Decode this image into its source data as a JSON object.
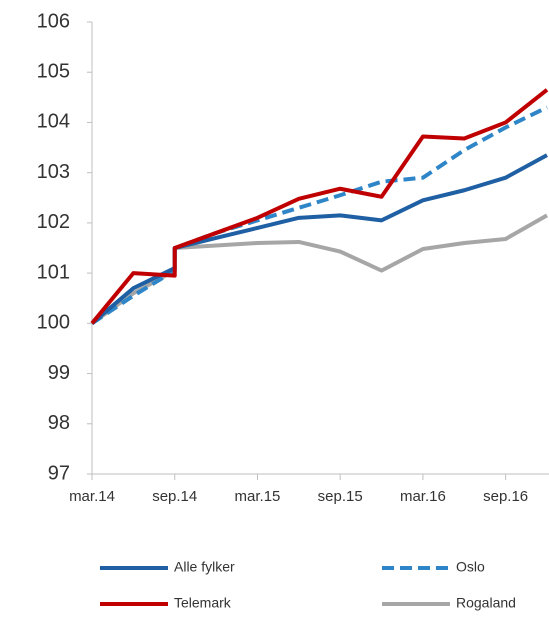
{
  "chart_data": {
    "type": "line",
    "x": [
      0,
      3,
      6,
      6,
      9,
      12,
      15,
      18,
      21,
      24,
      27,
      30,
      33
    ],
    "xlim": [
      0,
      33
    ],
    "xticks": [
      {
        "value": 0,
        "label": "mar.14"
      },
      {
        "value": 6,
        "label": "sep.14"
      },
      {
        "value": 12,
        "label": "mar.15"
      },
      {
        "value": 18,
        "label": "sep.15"
      },
      {
        "value": 24,
        "label": "mar.16"
      },
      {
        "value": 30,
        "label": "sep.16"
      }
    ],
    "ylim": [
      97,
      106
    ],
    "yticks": [
      97,
      98,
      99,
      100,
      101,
      102,
      103,
      104,
      105,
      106
    ],
    "legend": "bottom",
    "series": [
      {
        "name": "Alle fylker",
        "color": "#1f5fa3",
        "dash": false,
        "values": [
          100,
          100.7,
          101.1,
          101.5,
          101.7,
          101.9,
          102.1,
          102.15,
          102.05,
          102.45,
          102.65,
          102.9,
          103.35
        ]
      },
      {
        "name": "Oslo",
        "color": "#2e86c8",
        "dash": true,
        "values": [
          100,
          100.55,
          101.05,
          101.5,
          101.8,
          102.05,
          102.3,
          102.55,
          102.82,
          102.9,
          103.45,
          103.9,
          104.3
        ]
      },
      {
        "name": "Telemark",
        "color": "#c00000",
        "dash": false,
        "values": [
          100,
          101.0,
          100.95,
          101.5,
          101.8,
          102.1,
          102.48,
          102.68,
          102.52,
          103.72,
          103.68,
          104.0,
          104.65
        ]
      },
      {
        "name": "Rogaland",
        "color": "#a6a6a6",
        "dash": false,
        "values": [
          100,
          100.6,
          101.05,
          101.5,
          101.55,
          101.6,
          101.62,
          101.43,
          101.05,
          101.48,
          101.6,
          101.68,
          102.15
        ]
      }
    ]
  }
}
